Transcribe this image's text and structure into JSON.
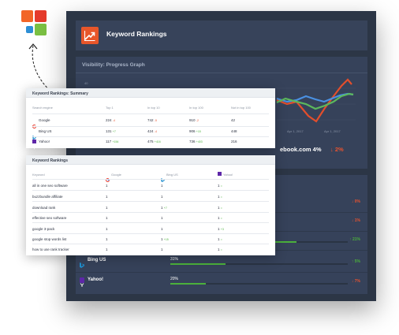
{
  "colors": {
    "logo_orange": "#f26527",
    "logo_red": "#e53b2c",
    "logo_blue": "#2d8fd5",
    "logo_green": "#7bc043",
    "accent_orange": "#e8562a",
    "panel_dark": "#2c3646",
    "panel_mid": "#36425a",
    "up_green": "#4bb03b",
    "down_red": "#e8532f",
    "google_color": "#ea4335",
    "bing_color": "#1f8ece",
    "yahoo_color": "#5e27a8"
  },
  "dashboard": {
    "title": "Keyword Rankings",
    "visibility": {
      "title": "Visibility: Progress Graph",
      "y_label": "40",
      "date_labels": [
        "Apr 1, 2017",
        "Apr 1, 2017"
      ],
      "legend_text": "ebook.com 4%",
      "legend_change": "↓ 2%"
    },
    "rows": [
      {
        "name": "",
        "pct": "",
        "fill": 0,
        "delta": "↓ 0%",
        "dir": "down",
        "icon": "none"
      },
      {
        "name": "",
        "pct": "",
        "fill": 0,
        "delta": "↓ 1%",
        "dir": "down",
        "icon": "none"
      },
      {
        "name": "",
        "pct": "",
        "fill": 0.71,
        "delta": "↑ 21%",
        "dir": "up",
        "icon": "none"
      },
      {
        "name": "Bing US",
        "pct": "31%",
        "fill": 0.31,
        "delta": "↑ 5%",
        "dir": "up",
        "icon": "bing-icon"
      },
      {
        "name": "Yahoo!",
        "pct": "20%",
        "fill": 0.2,
        "delta": "↓ 7%",
        "dir": "down",
        "icon": "yahoo-icon"
      }
    ]
  },
  "summary": {
    "title": "Keyword Rankings: Summary",
    "headers": [
      "Search engine",
      "Top 1",
      "In top 10",
      "In top 100",
      "Not in top 100"
    ],
    "rows": [
      {
        "engine": "Google",
        "icon": "google-icon",
        "top1": "224",
        "top1_d": "-4",
        "top1_dir": "down",
        "top10": "742",
        "top10_d": "-5",
        "top10_dir": "down",
        "top100": "910",
        "top100_d": "-2",
        "top100_dir": "down",
        "not100": "42"
      },
      {
        "engine": "Bing US",
        "icon": "bing-icon",
        "top1": "131",
        "top1_d": "+7",
        "top1_dir": "up",
        "top10": "424",
        "top10_d": "-4",
        "top10_dir": "down",
        "top100": "906",
        "top100_d": "+15",
        "top100_dir": "up",
        "not100": "448"
      },
      {
        "engine": "Yahoo!",
        "icon": "yahoo-icon",
        "top1": "117",
        "top1_d": "+154",
        "top1_dir": "up",
        "top10": "475",
        "top10_d": "+416",
        "top10_dir": "up",
        "top100": "736",
        "top100_d": "+403",
        "top100_dir": "up",
        "not100": "216"
      }
    ]
  },
  "rankings": {
    "title": "Keyword Rankings",
    "headers": [
      "Keyword",
      "Google",
      "Bing US",
      "Yahoo!"
    ],
    "rows": [
      {
        "keyword": "all in one seo software",
        "g": "1",
        "b": "1",
        "y": "1",
        "y_d": "="
      },
      {
        "keyword": "buzzbundle affiliate",
        "g": "1",
        "b": "1",
        "y": "1",
        "y_d": "="
      },
      {
        "keyword": "download rank",
        "g": "1",
        "b": "1",
        "b_d": "+7",
        "y": "1",
        "y_d": "="
      },
      {
        "keyword": "effective seo software",
        "g": "1",
        "b": "1",
        "y": "1",
        "y_d": "="
      },
      {
        "keyword": "google 3-pack",
        "g": "1",
        "b": "1",
        "y": "1",
        "y_d": "+3"
      },
      {
        "keyword": "google stop words list",
        "g": "1",
        "b": "1",
        "b_d": "+15",
        "y": "1",
        "y_d": "="
      },
      {
        "keyword": "how to use rank tracker",
        "g": "1",
        "b": "1",
        "y": "1",
        "y_d": "="
      }
    ]
  }
}
